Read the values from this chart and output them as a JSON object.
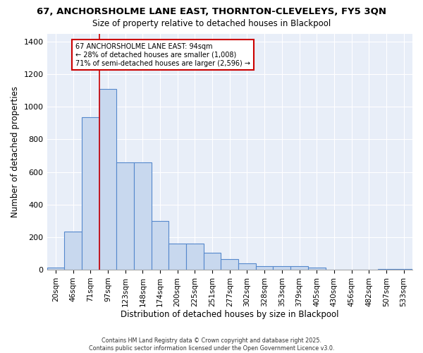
{
  "title_line1": "67, ANCHORSHOLME LANE EAST, THORNTON-CLEVELEYS, FY5 3QN",
  "title_line2": "Size of property relative to detached houses in Blackpool",
  "xlabel": "Distribution of detached houses by size in Blackpool",
  "ylabel": "Number of detached properties",
  "bar_color": "#c8d8ee",
  "bar_edge_color": "#5588cc",
  "background_color": "#e8eef8",
  "grid_color": "#ffffff",
  "fig_background": "#ffffff",
  "categories": [
    "20sqm",
    "46sqm",
    "71sqm",
    "97sqm",
    "123sqm",
    "148sqm",
    "174sqm",
    "200sqm",
    "225sqm",
    "251sqm",
    "277sqm",
    "302sqm",
    "328sqm",
    "353sqm",
    "379sqm",
    "405sqm",
    "430sqm",
    "456sqm",
    "482sqm",
    "507sqm",
    "533sqm"
  ],
  "values": [
    15,
    235,
    935,
    1110,
    660,
    660,
    300,
    160,
    160,
    105,
    65,
    38,
    20,
    20,
    20,
    12,
    0,
    0,
    0,
    5,
    5
  ],
  "red_line_x": 2.5,
  "annotation_text": "67 ANCHORSHOLME LANE EAST: 94sqm\n← 28% of detached houses are smaller (1,008)\n71% of semi-detached houses are larger (2,596) →",
  "annotation_box_color": "#ffffff",
  "annotation_box_edge": "#cc0000",
  "footer_line1": "Contains HM Land Registry data © Crown copyright and database right 2025.",
  "footer_line2": "Contains public sector information licensed under the Open Government Licence v3.0.",
  "ylim": [
    0,
    1450
  ],
  "yticks": [
    0,
    200,
    400,
    600,
    800,
    1000,
    1200,
    1400
  ]
}
